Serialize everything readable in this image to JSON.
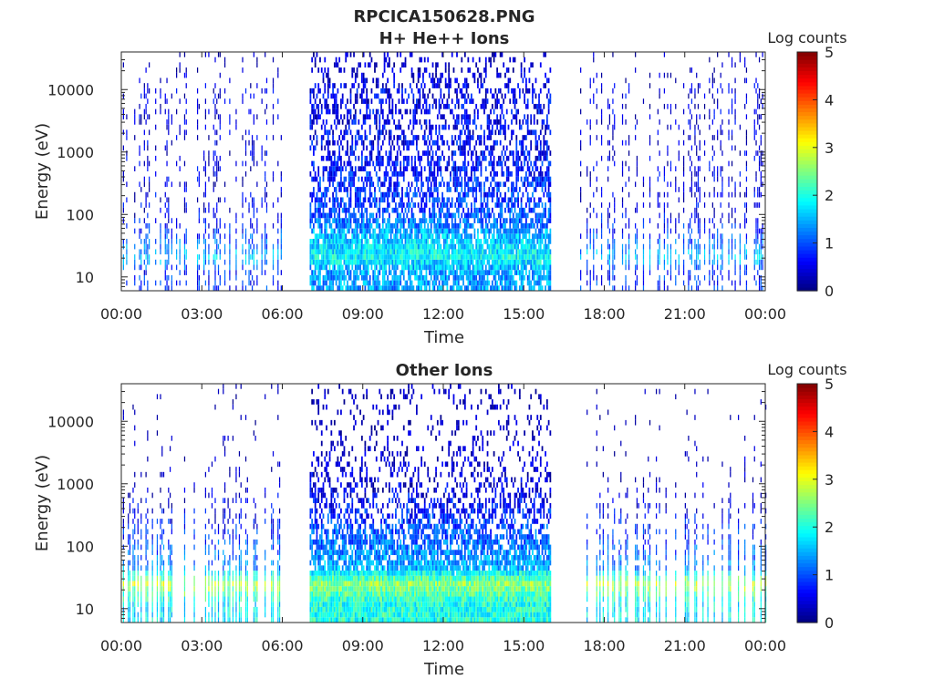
{
  "figure_title": "RPCICA150628.PNG",
  "colors": {
    "text": "#262626",
    "axis": "#262626",
    "background": "#ffffff"
  },
  "colormap": "jet",
  "chart_data": [
    {
      "type": "heatmap",
      "title": "H+ He++ Ions",
      "xlabel": "Time",
      "ylabel": "Energy (eV)",
      "colorbar_label": "Log counts",
      "xlim": [
        "00:00",
        "24:00"
      ],
      "x_ticks": [
        "00:00",
        "03:00",
        "06:00",
        "09:00",
        "12:00",
        "15:00",
        "18:00",
        "21:00",
        "00:00"
      ],
      "y_scale": "log",
      "ylim": [
        6,
        40000
      ],
      "y_ticks": [
        10,
        100,
        1000,
        10000
      ],
      "y_tick_labels": [
        "10",
        "100",
        "1000",
        "10000"
      ],
      "clim": [
        0,
        5
      ],
      "c_ticks": [
        "0",
        "1",
        "2",
        "3",
        "4",
        "5"
      ],
      "data_gaps": [
        [
          "06:00",
          "07:00"
        ],
        [
          "16:00",
          "17:00"
        ]
      ],
      "sparse_intervals": [
        [
          "00:00",
          "06:00"
        ],
        [
          "17:00",
          "24:00"
        ]
      ],
      "dense_interval": [
        "07:00",
        "16:00"
      ],
      "energy_profile": [
        {
          "energy": 12,
          "log_counts_dense": 1.4,
          "log_counts_sparse": 0.8
        },
        {
          "energy": 20,
          "log_counts_dense": 1.9,
          "log_counts_sparse": 1.6
        },
        {
          "energy": 40,
          "log_counts_dense": 1.6,
          "log_counts_sparse": 1.0
        },
        {
          "energy": 100,
          "log_counts_dense": 1.0,
          "log_counts_sparse": 0.5
        },
        {
          "energy": 1000,
          "log_counts_dense": 0.6,
          "log_counts_sparse": 0.4
        },
        {
          "energy": 10000,
          "log_counts_dense": 0.5,
          "log_counts_sparse": 0.4
        },
        {
          "energy": 25000,
          "log_counts_dense": 0.2,
          "log_counts_sparse": 0.1
        }
      ]
    },
    {
      "type": "heatmap",
      "title": "Other Ions",
      "xlabel": "Time",
      "ylabel": "Energy (eV)",
      "colorbar_label": "Log counts",
      "xlim": [
        "00:00",
        "24:00"
      ],
      "x_ticks": [
        "00:00",
        "03:00",
        "06:00",
        "09:00",
        "12:00",
        "15:00",
        "18:00",
        "21:00",
        "00:00"
      ],
      "y_scale": "log",
      "ylim": [
        6,
        40000
      ],
      "y_ticks": [
        10,
        100,
        1000,
        10000
      ],
      "y_tick_labels": [
        "10",
        "100",
        "1000",
        "10000"
      ],
      "clim": [
        0,
        5
      ],
      "c_ticks": [
        "0",
        "1",
        "2",
        "3",
        "4",
        "5"
      ],
      "data_gaps": [
        [
          "06:00",
          "07:00"
        ],
        [
          "16:00",
          "17:00"
        ]
      ],
      "sparse_intervals": [
        [
          "00:00",
          "06:00"
        ],
        [
          "17:00",
          "24:00"
        ]
      ],
      "dense_interval": [
        "07:00",
        "16:00"
      ],
      "energy_profile": [
        {
          "energy": 12,
          "log_counts_dense": 2.0,
          "log_counts_sparse": 1.8
        },
        {
          "energy": 25,
          "log_counts_dense": 2.6,
          "log_counts_sparse": 2.8
        },
        {
          "energy": 45,
          "log_counts_dense": 1.5,
          "log_counts_sparse": 1.3
        },
        {
          "energy": 100,
          "log_counts_dense": 1.2,
          "log_counts_sparse": 1.0
        },
        {
          "energy": 300,
          "log_counts_dense": 0.8,
          "log_counts_sparse": 0.6
        },
        {
          "energy": 1000,
          "log_counts_dense": 0.4,
          "log_counts_sparse": 0.2
        },
        {
          "energy": 10000,
          "log_counts_dense": 0.1,
          "log_counts_sparse": 0.0
        }
      ]
    }
  ]
}
